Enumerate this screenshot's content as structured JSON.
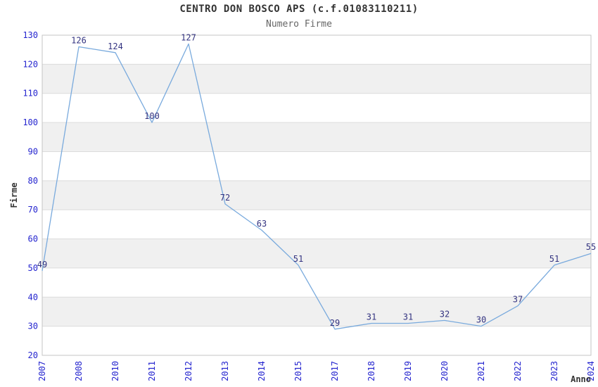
{
  "chart_data": {
    "type": "line",
    "title": "CENTRO DON BOSCO APS (c.f.01083110211)",
    "subtitle": "Numero Firme",
    "xlabel": "Anno",
    "ylabel": "Firme",
    "x": [
      "2007",
      "2008",
      "2010",
      "2011",
      "2012",
      "2013",
      "2014",
      "2015",
      "2017",
      "2018",
      "2019",
      "2020",
      "2021",
      "2022",
      "2023",
      "2024"
    ],
    "values": [
      49,
      126,
      124,
      100,
      127,
      72,
      63,
      51,
      29,
      31,
      31,
      32,
      30,
      37,
      51,
      55
    ],
    "ylim": [
      20,
      130
    ],
    "ytick_step": 10,
    "grid": "horizontal-lines-with-alternating-bands",
    "legend": "none",
    "markers": "none",
    "data_labels_shown": true,
    "colors": {
      "line": "#79aadd",
      "axis_tick_label": "#2525cf",
      "data_label": "#333380",
      "band": "#f0f0f0",
      "gridline": "#dcdcdc",
      "plot_border": "#c4c4c4",
      "title": "#333333",
      "subtitle": "#666666",
      "axis_title": "#333333",
      "background": "#ffffff"
    }
  }
}
